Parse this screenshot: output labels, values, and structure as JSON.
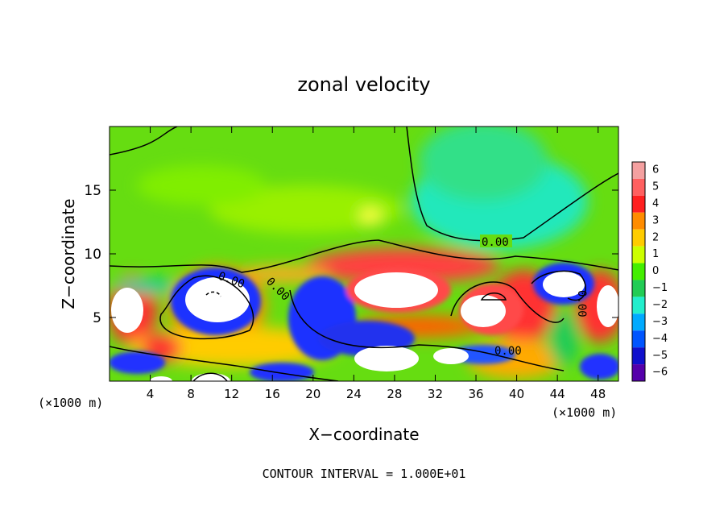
{
  "chart_data": {
    "type": "heatmap",
    "title": "zonal velocity",
    "xlabel": "X−coordinate",
    "ylabel": "Z−coordinate",
    "x_unit_left": "(×1000 m)",
    "x_unit_right": "(×1000 m)",
    "footer": "CONTOUR INTERVAL = 1.000E+01",
    "xlim": [
      0,
      50
    ],
    "ylim": [
      0,
      20
    ],
    "x_ticks": [
      "4",
      "8",
      "12",
      "16",
      "20",
      "24",
      "28",
      "32",
      "36",
      "40",
      "44",
      "48"
    ],
    "x_tick_values": [
      4,
      8,
      12,
      16,
      20,
      24,
      28,
      32,
      36,
      40,
      44,
      48
    ],
    "y_ticks": [
      "5",
      "10",
      "15"
    ],
    "y_tick_values": [
      5,
      10,
      15
    ],
    "contour_labels": [
      "0.00",
      "0.00",
      "0.00",
      "0.00",
      "0.00"
    ],
    "colorbar": {
      "levels": [
        "6",
        "5",
        "4",
        "3",
        "2",
        "1",
        "0",
        "−1",
        "−2",
        "−3",
        "−4",
        "−5",
        "−6"
      ],
      "colors": [
        "#f4a0a0",
        "#ff6060",
        "#ff2020",
        "#ff8c00",
        "#ffcc00",
        "#ccff00",
        "#44ee00",
        "#22cc55",
        "#22eecc",
        "#00aaff",
        "#0055ff",
        "#1010cc",
        "#5500aa"
      ]
    }
  }
}
